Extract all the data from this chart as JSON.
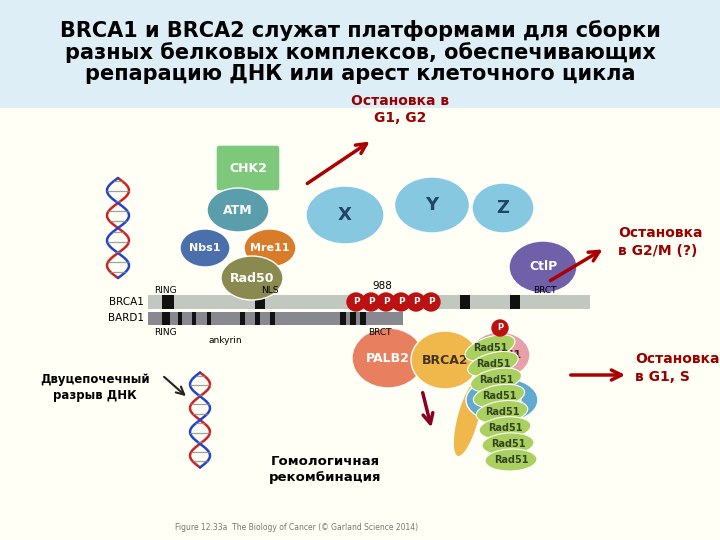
{
  "title_line1": "BRCA1 и BRCA2 служат платформами для сборки",
  "title_line2": "разных белковых комплексов, обеспечивающих",
  "title_line3": "репарацию ДНК или арест клеточного цикла",
  "title_fontsize": 15,
  "title_color": "#000000",
  "title_bg": "#deeef7",
  "bg_color": "#fffff5",
  "figure_caption": "Figure 12.33a  The Biology of Cancer (© Garland Science 2014)",
  "label_stop_g1g2": "Остановка в\nG1, G2",
  "label_stop_g2m": "Остановка\nв G2/M (?)",
  "label_stop_g1s": "Остановка\nв G1, S",
  "label_homolog": "Гомологичная\nрекомбинация",
  "label_dsbreak": "Двуцепочечный\nразрыв ДНК",
  "chk2_color": "#7dc87a",
  "atm_color": "#5a9eab",
  "nbs1_color": "#4a6faa",
  "mre11_color": "#d97c2a",
  "rad50_color": "#8a8a50",
  "x_color": "#85c8df",
  "y_color": "#85c8df",
  "z_color": "#85c8df",
  "ctip_color": "#7060aa",
  "bach1_color": "#e8a0a8",
  "topbp1_color": "#60aad0",
  "palb2_color": "#e88060",
  "brca2_color": "#f0b84a",
  "rad51_color": "#aad060",
  "p_color": "#bb1111",
  "brca1_bar_color": "#c0c8c0",
  "bard1_bar_color": "#888890",
  "arrow_red": "#aa0000",
  "arrow_black": "#222222",
  "label_red": "#990000"
}
